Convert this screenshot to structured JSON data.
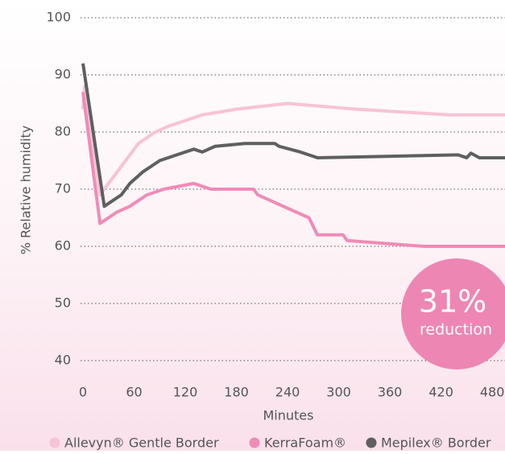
{
  "chart_data": {
    "type": "line",
    "x_label": "Minutes",
    "y_label": "% Relative humidity",
    "xlim": [
      0,
      495
    ],
    "xticks": [
      0,
      60,
      120,
      180,
      240,
      300,
      360,
      420,
      480
    ],
    "ylim": [
      40,
      100
    ],
    "yticks": [
      40,
      50,
      60,
      70,
      80,
      90,
      100
    ],
    "grid": true,
    "legend": "bottom",
    "series": [
      {
        "name": "Allevyn® Gentle Border",
        "color": "#f7c3d6",
        "x": [
          0,
          2,
          20,
          25,
          35,
          45,
          55,
          65,
          75,
          85,
          100,
          120,
          140,
          180,
          240,
          320,
          430,
          495
        ],
        "values": [
          84,
          88,
          69,
          70,
          72,
          74,
          76,
          78,
          79,
          80,
          81,
          82,
          83,
          84,
          85,
          84,
          83,
          83
        ]
      },
      {
        "name": "KerraFoam®",
        "color": "#f08bb8",
        "x": [
          0,
          20,
          30,
          40,
          55,
          65,
          75,
          95,
          130,
          150,
          200,
          205,
          220,
          235,
          250,
          265,
          275,
          305,
          310,
          400,
          495
        ],
        "values": [
          87,
          64,
          65,
          66,
          67,
          68,
          69,
          70,
          71,
          70,
          70,
          69,
          68,
          67,
          66,
          65,
          62,
          62,
          61,
          60,
          60
        ]
      },
      {
        "name": "Mepilex® Border",
        "color": "#5f5f60",
        "x": [
          0,
          25,
          35,
          45,
          55,
          70,
          80,
          90,
          110,
          130,
          140,
          155,
          190,
          225,
          230,
          255,
          275,
          440,
          450,
          455,
          465,
          495
        ],
        "values": [
          92,
          67,
          68,
          69,
          71,
          73,
          74,
          75,
          76,
          77,
          76.5,
          77.5,
          78,
          78,
          77.5,
          76.5,
          75.5,
          76,
          75.5,
          76.3,
          75.5,
          75.5
        ]
      }
    ],
    "annotation": {
      "value": "31%",
      "text": "reduction"
    }
  }
}
